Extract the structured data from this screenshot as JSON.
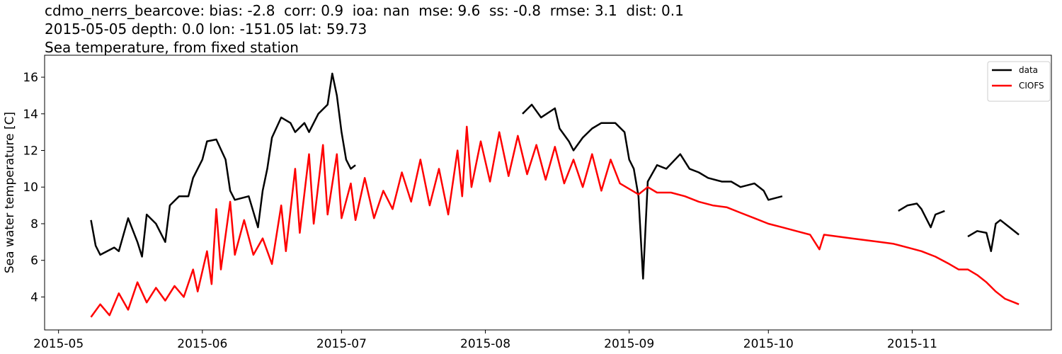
{
  "chart_data": {
    "type": "line",
    "title": [
      "cdmo_nerrs_bearcove: bias: -2.8  corr: 0.9  ioa: nan  mse: 9.6  ss: -0.8  rmse: 3.1  dist: 0.1",
      "2015-05-05 depth: 0.0 lon: -151.05 lat: 59.73",
      "Sea temperature, from fixed station"
    ],
    "y_label": "Sea water temperature [C]",
    "xlim": [
      "2015-04-28",
      "2015-12-01"
    ],
    "xticks": [
      "2015-05",
      "2015-06",
      "2015-07",
      "2015-08",
      "2015-09",
      "2015-10",
      "2015-11"
    ],
    "ylim": [
      2.2,
      17.2
    ],
    "yticks": [
      4,
      6,
      8,
      10,
      12,
      14,
      16
    ],
    "legend": "upper right",
    "series": [
      {
        "name": "data",
        "color": "#000000",
        "x": [
          "2015-05-08",
          "2015-05-09",
          "2015-05-10",
          "2015-05-13",
          "2015-05-14",
          "2015-05-16",
          "2015-05-18",
          "2015-05-19",
          "2015-05-20",
          "2015-05-22",
          "2015-05-24",
          "2015-05-25",
          "2015-05-27",
          "2015-05-29",
          "2015-05-30",
          "2015-06-01",
          "2015-06-02",
          "2015-06-04",
          "2015-06-06",
          "2015-06-07",
          "2015-06-08",
          "2015-06-11",
          "2015-06-13",
          "2015-06-14",
          "2015-06-15",
          "2015-06-16",
          "2015-06-18",
          "2015-06-20",
          "2015-06-21",
          "2015-06-23",
          "2015-06-24",
          "2015-06-26",
          "2015-06-28",
          "2015-06-29",
          "2015-06-30",
          "2015-07-01",
          "2015-07-02",
          "2015-07-03",
          "2015-07-04",
          "2015-07-20",
          "2015-08-09",
          "2015-08-11",
          "2015-08-13",
          "2015-08-16",
          "2015-08-17",
          "2015-08-19",
          "2015-08-20",
          "2015-08-22",
          "2015-08-24",
          "2015-08-26",
          "2015-08-29",
          "2015-08-31",
          "2015-09-01",
          "2015-09-02",
          "2015-09-03",
          "2015-09-04",
          "2015-09-05",
          "2015-09-07",
          "2015-09-09",
          "2015-09-12",
          "2015-09-14",
          "2015-09-16",
          "2015-09-18",
          "2015-09-21",
          "2015-09-23",
          "2015-09-25",
          "2015-09-28",
          "2015-09-30",
          "2015-10-01",
          "2015-10-04",
          "2015-10-15",
          "2015-10-29",
          "2015-10-31",
          "2015-11-02",
          "2015-11-03",
          "2015-11-05",
          "2015-11-06",
          "2015-11-08",
          "2015-11-10",
          "2015-11-13",
          "2015-11-15",
          "2015-11-17",
          "2015-11-18",
          "2015-11-19",
          "2015-11-20",
          "2015-11-22",
          "2015-11-24"
        ],
        "values": [
          8.2,
          6.8,
          6.3,
          6.7,
          6.5,
          8.3,
          7.0,
          6.2,
          8.5,
          8.0,
          7.0,
          9.0,
          9.5,
          9.5,
          10.5,
          11.5,
          12.5,
          12.6,
          11.5,
          9.8,
          9.3,
          9.5,
          7.8,
          9.8,
          11.0,
          12.7,
          13.8,
          13.5,
          13.0,
          13.5,
          13.0,
          14.0,
          14.5,
          16.2,
          15.0,
          13.0,
          11.5,
          11.0,
          11.2,
          null,
          14.0,
          14.5,
          13.8,
          14.3,
          13.2,
          12.5,
          12.0,
          12.7,
          13.2,
          13.5,
          13.5,
          13.0,
          11.5,
          11.0,
          9.5,
          5.0,
          10.3,
          11.2,
          11.0,
          11.8,
          11.0,
          10.8,
          10.5,
          10.3,
          10.3,
          10.0,
          10.2,
          9.8,
          9.3,
          9.5,
          null,
          8.7,
          9.0,
          9.1,
          8.8,
          7.8,
          8.5,
          8.7,
          null,
          7.3,
          7.6,
          7.5,
          6.5,
          8.0,
          8.2,
          7.8,
          7.4
        ]
      },
      {
        "name": "CIOFS",
        "color": "#ff0000",
        "x": [
          "2015-05-08",
          "2015-05-10",
          "2015-05-12",
          "2015-05-14",
          "2015-05-16",
          "2015-05-18",
          "2015-05-20",
          "2015-05-22",
          "2015-05-24",
          "2015-05-26",
          "2015-05-28",
          "2015-05-30",
          "2015-05-31",
          "2015-06-02",
          "2015-06-03",
          "2015-06-04",
          "2015-06-05",
          "2015-06-07",
          "2015-06-08",
          "2015-06-10",
          "2015-06-12",
          "2015-06-14",
          "2015-06-16",
          "2015-06-18",
          "2015-06-19",
          "2015-06-21",
          "2015-06-22",
          "2015-06-24",
          "2015-06-25",
          "2015-06-27",
          "2015-06-28",
          "2015-06-30",
          "2015-07-01",
          "2015-07-03",
          "2015-07-04",
          "2015-07-06",
          "2015-07-08",
          "2015-07-10",
          "2015-07-12",
          "2015-07-14",
          "2015-07-16",
          "2015-07-18",
          "2015-07-20",
          "2015-07-22",
          "2015-07-24",
          "2015-07-26",
          "2015-07-27",
          "2015-07-28",
          "2015-07-29",
          "2015-07-31",
          "2015-08-02",
          "2015-08-04",
          "2015-08-06",
          "2015-08-08",
          "2015-08-10",
          "2015-08-12",
          "2015-08-14",
          "2015-08-16",
          "2015-08-18",
          "2015-08-20",
          "2015-08-22",
          "2015-08-24",
          "2015-08-26",
          "2015-08-28",
          "2015-08-30",
          "2015-09-01",
          "2015-09-03",
          "2015-09-05",
          "2015-09-07",
          "2015-09-10",
          "2015-09-13",
          "2015-09-16",
          "2015-09-19",
          "2015-09-22",
          "2015-09-25",
          "2015-09-28",
          "2015-10-01",
          "2015-10-04",
          "2015-10-07",
          "2015-10-10",
          "2015-10-12",
          "2015-10-13",
          "2015-10-16",
          "2015-10-19",
          "2015-10-22",
          "2015-10-25",
          "2015-10-28",
          "2015-10-31",
          "2015-11-03",
          "2015-11-06",
          "2015-11-09",
          "2015-11-11",
          "2015-11-13",
          "2015-11-15",
          "2015-11-17",
          "2015-11-19",
          "2015-11-21",
          "2015-11-23",
          "2015-11-24"
        ],
        "values": [
          2.9,
          3.6,
          3.0,
          4.2,
          3.3,
          4.8,
          3.7,
          4.5,
          3.8,
          4.6,
          4.0,
          5.5,
          4.3,
          6.5,
          4.7,
          8.8,
          5.5,
          9.2,
          6.3,
          8.2,
          6.3,
          7.2,
          5.8,
          9.0,
          6.5,
          11.0,
          7.5,
          11.8,
          8.0,
          12.3,
          8.5,
          11.8,
          8.3,
          10.2,
          8.2,
          10.5,
          8.3,
          9.8,
          8.8,
          10.8,
          9.2,
          11.5,
          9.0,
          11.0,
          8.5,
          12.0,
          9.5,
          13.3,
          10.0,
          12.5,
          10.3,
          13.0,
          10.6,
          12.8,
          10.7,
          12.3,
          10.4,
          12.2,
          10.2,
          11.5,
          10.0,
          11.8,
          9.8,
          11.5,
          10.2,
          9.9,
          9.6,
          10.0,
          9.7,
          9.7,
          9.5,
          9.2,
          9.0,
          8.9,
          8.6,
          8.3,
          8.0,
          7.8,
          7.6,
          7.4,
          6.6,
          7.4,
          7.3,
          7.2,
          7.1,
          7.0,
          6.9,
          6.7,
          6.5,
          6.2,
          5.8,
          5.5,
          5.5,
          5.2,
          4.8,
          4.3,
          3.9,
          3.7,
          3.6
        ]
      }
    ]
  }
}
